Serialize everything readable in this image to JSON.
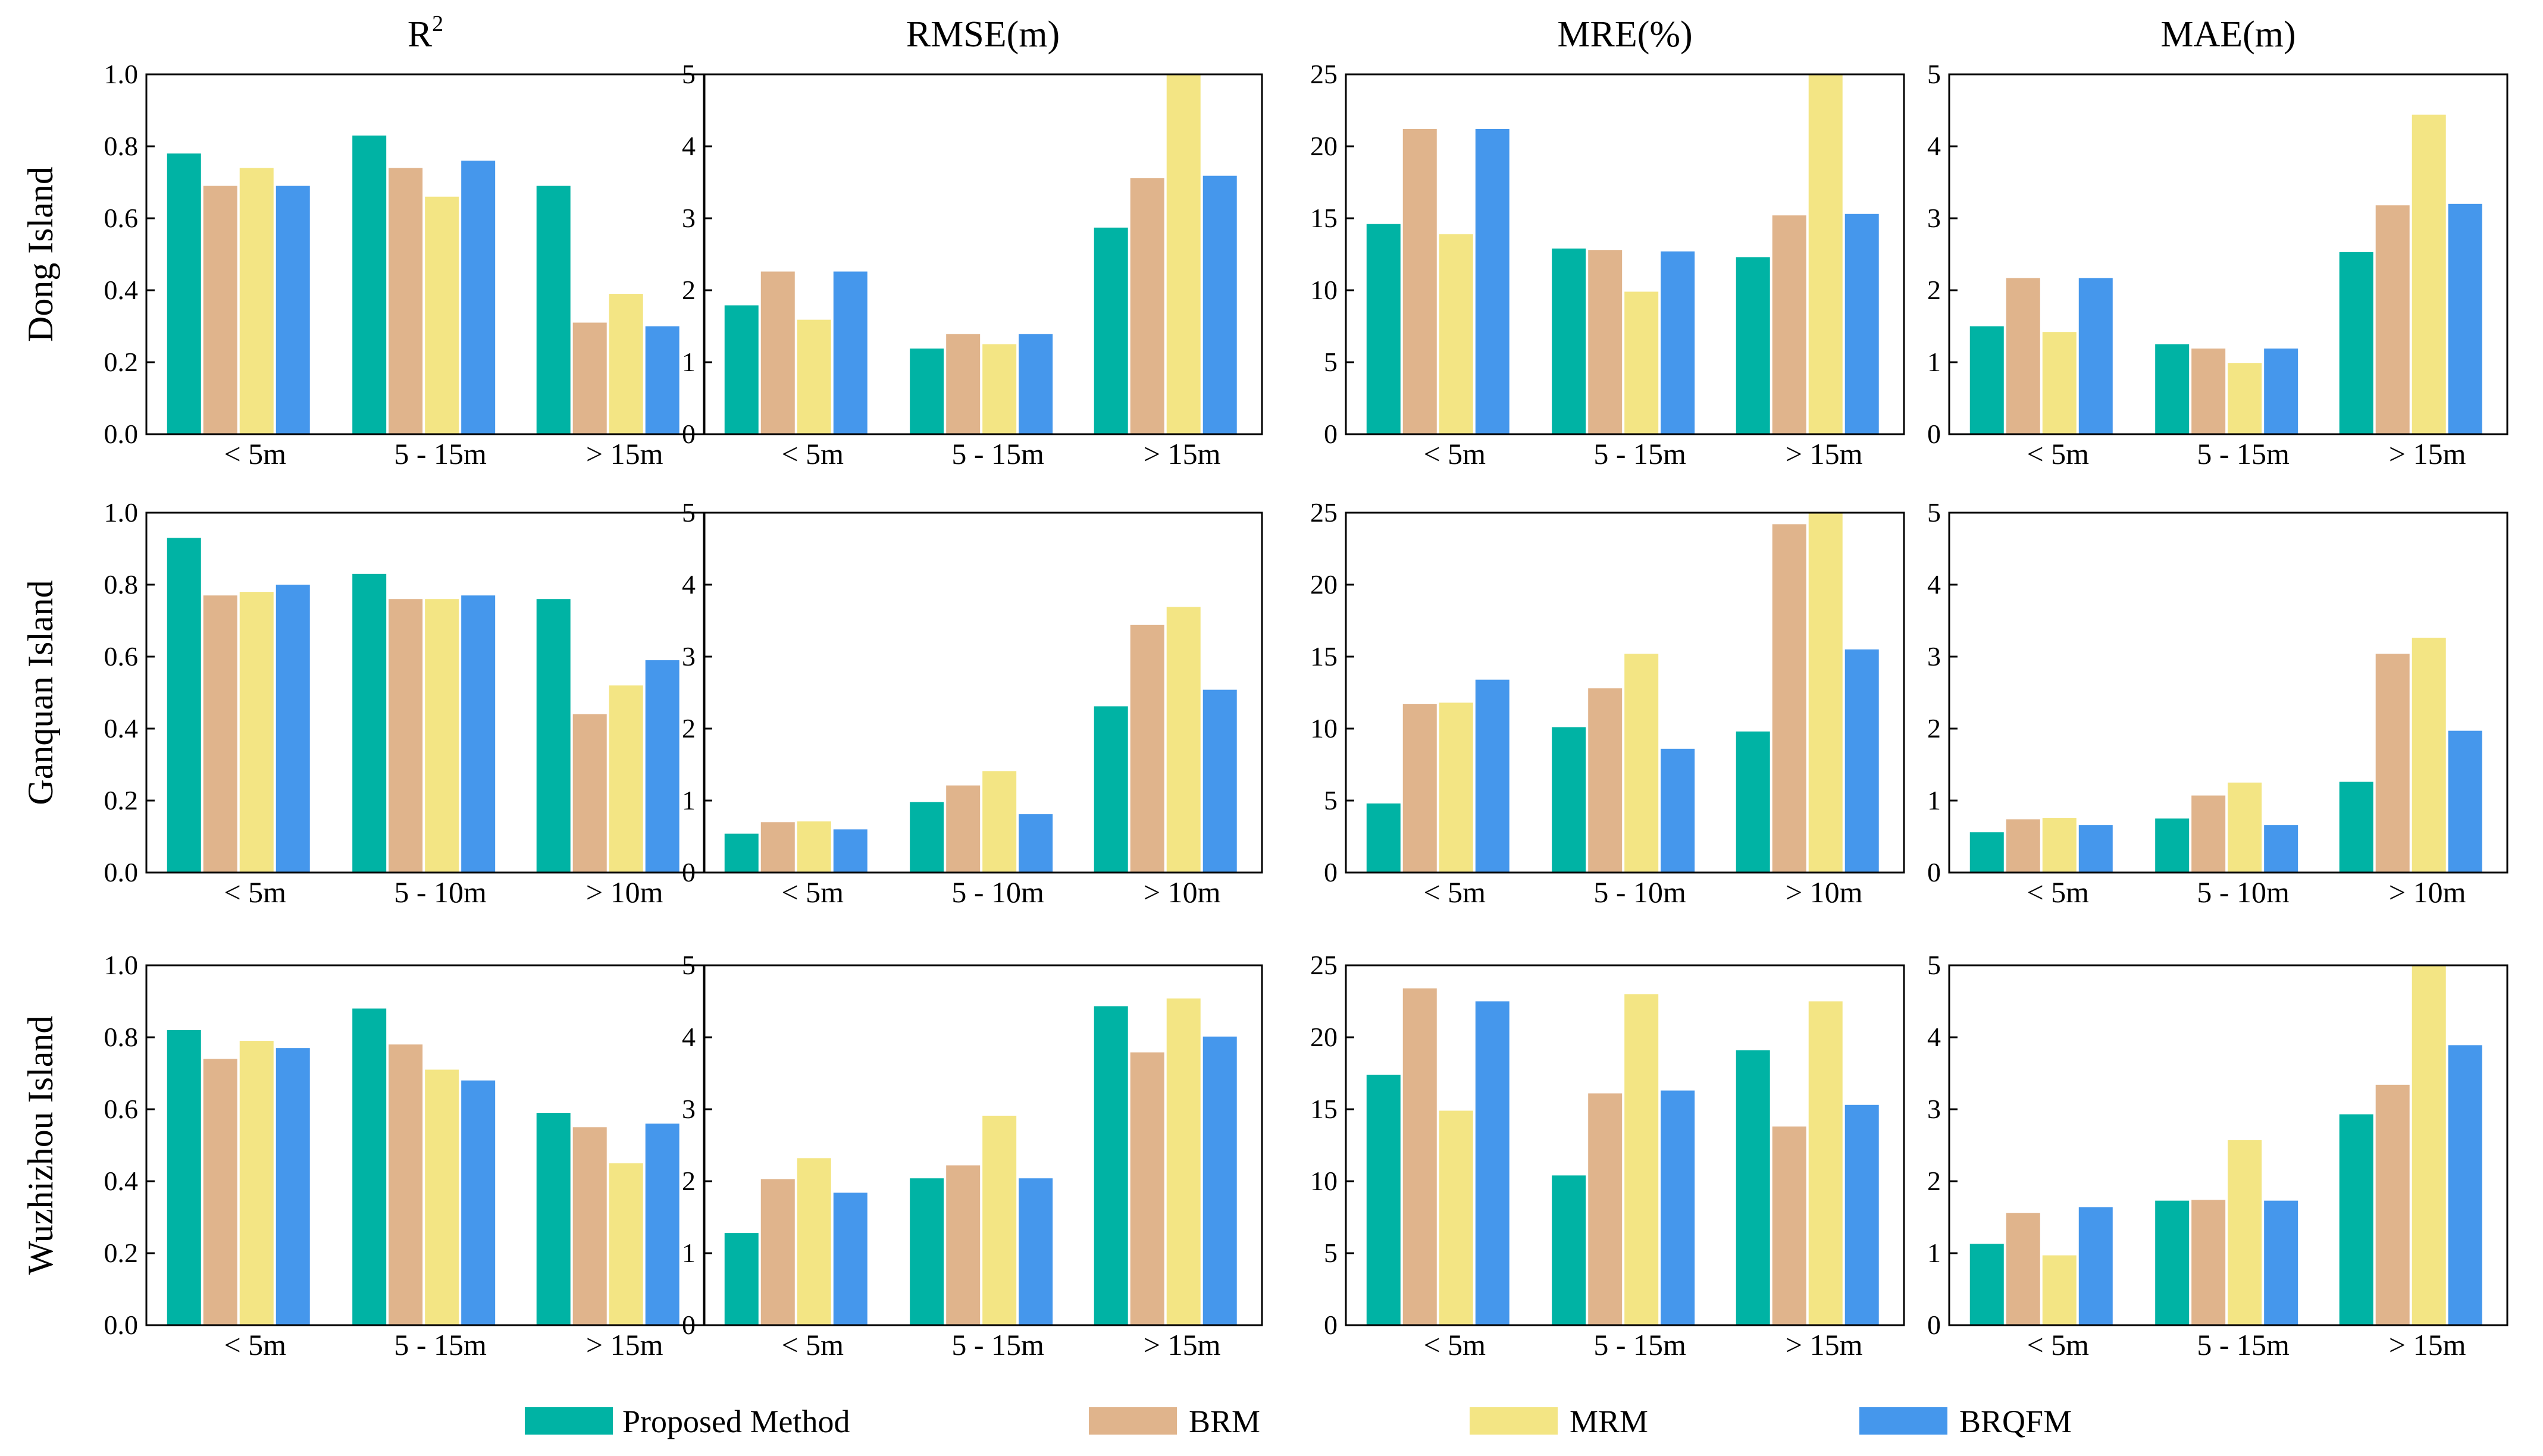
{
  "colors": {
    "Proposed Method": "#00b3a4",
    "BRM": "#e0b48c",
    "MRM": "#f3e584",
    "BRQFM": "#4597ec"
  },
  "metrics": [
    {
      "title": "R",
      "title_sup": "2",
      "ylim": [
        0,
        1.0
      ],
      "ticks": [
        "0.0",
        "0.2",
        "0.4",
        "0.6",
        "0.8",
        "1.0"
      ]
    },
    {
      "title": "RMSE(m)",
      "ylim": [
        0,
        5
      ],
      "ticks": [
        "0",
        "1",
        "2",
        "3",
        "4",
        "5"
      ]
    },
    {
      "title": "MRE(%)",
      "ylim": [
        0,
        25
      ],
      "ticks": [
        "0",
        "5",
        "10",
        "15",
        "20",
        "25"
      ]
    },
    {
      "title": "MAE(m)",
      "ylim": [
        0,
        5
      ],
      "ticks": [
        "0",
        "1",
        "2",
        "3",
        "4",
        "5"
      ]
    }
  ],
  "series_names": [
    "Proposed Method",
    "BRM",
    "MRM",
    "BRQFM"
  ],
  "islands": [
    {
      "name": "Dong Island",
      "categories": [
        "< 5m",
        "5 - 15m",
        "> 15m"
      ]
    },
    {
      "name": "Ganquan Island",
      "categories": [
        "< 5m",
        "5 - 10m",
        "> 10m"
      ]
    },
    {
      "name": "Wuzhizhou Island",
      "categories": [
        "< 5m",
        "5 - 15m",
        "> 15m"
      ]
    }
  ],
  "chart_data": [
    {
      "type": "bar",
      "island": "Dong Island",
      "metric": "R2",
      "ylim": [
        0,
        1.0
      ],
      "categories": [
        "< 5m",
        "5 - 15m",
        "> 15m"
      ],
      "series": [
        {
          "name": "Proposed Method",
          "values": [
            0.78,
            0.83,
            0.69
          ]
        },
        {
          "name": "BRM",
          "values": [
            0.69,
            0.74,
            0.31
          ]
        },
        {
          "name": "MRM",
          "values": [
            0.74,
            0.66,
            0.39
          ]
        },
        {
          "name": "BRQFM",
          "values": [
            0.69,
            0.76,
            0.3
          ]
        }
      ]
    },
    {
      "type": "bar",
      "island": "Dong Island",
      "metric": "RMSE(m)",
      "ylim": [
        0,
        5
      ],
      "categories": [
        "< 5m",
        "5 - 15m",
        "> 15m"
      ],
      "series": [
        {
          "name": "Proposed Method",
          "values": [
            1.79,
            1.19,
            2.87
          ]
        },
        {
          "name": "BRM",
          "values": [
            2.26,
            1.39,
            3.56
          ]
        },
        {
          "name": "MRM",
          "values": [
            1.59,
            1.25,
            5.0
          ]
        },
        {
          "name": "BRQFM",
          "values": [
            2.26,
            1.39,
            3.59
          ]
        }
      ]
    },
    {
      "type": "bar",
      "island": "Dong Island",
      "metric": "MRE(%)",
      "ylim": [
        0,
        25
      ],
      "categories": [
        "< 5m",
        "5 - 15m",
        "> 15m"
      ],
      "series": [
        {
          "name": "Proposed Method",
          "values": [
            14.6,
            12.9,
            12.3
          ]
        },
        {
          "name": "BRM",
          "values": [
            21.2,
            12.8,
            15.2
          ]
        },
        {
          "name": "MRM",
          "values": [
            13.9,
            9.9,
            25.0
          ]
        },
        {
          "name": "BRQFM",
          "values": [
            21.2,
            12.7,
            15.3
          ]
        }
      ]
    },
    {
      "type": "bar",
      "island": "Dong Island",
      "metric": "MAE(m)",
      "ylim": [
        0,
        5
      ],
      "categories": [
        "< 5m",
        "5 - 15m",
        "> 15m"
      ],
      "series": [
        {
          "name": "Proposed Method",
          "values": [
            1.5,
            1.25,
            2.53
          ]
        },
        {
          "name": "BRM",
          "values": [
            2.17,
            1.19,
            3.18
          ]
        },
        {
          "name": "MRM",
          "values": [
            1.42,
            0.99,
            4.44
          ]
        },
        {
          "name": "BRQFM",
          "values": [
            2.17,
            1.19,
            3.2
          ]
        }
      ]
    },
    {
      "type": "bar",
      "island": "Ganquan Island",
      "metric": "R2",
      "ylim": [
        0,
        1.0
      ],
      "categories": [
        "< 5m",
        "5 - 10m",
        "> 10m"
      ],
      "series": [
        {
          "name": "Proposed Method",
          "values": [
            0.93,
            0.83,
            0.76
          ]
        },
        {
          "name": "BRM",
          "values": [
            0.77,
            0.76,
            0.44
          ]
        },
        {
          "name": "MRM",
          "values": [
            0.78,
            0.76,
            0.52
          ]
        },
        {
          "name": "BRQFM",
          "values": [
            0.8,
            0.77,
            0.59
          ]
        }
      ]
    },
    {
      "type": "bar",
      "island": "Ganquan Island",
      "metric": "RMSE(m)",
      "ylim": [
        0,
        5
      ],
      "categories": [
        "< 5m",
        "5 - 10m",
        "> 10m"
      ],
      "series": [
        {
          "name": "Proposed Method",
          "values": [
            0.54,
            0.98,
            2.31
          ]
        },
        {
          "name": "BRM",
          "values": [
            0.7,
            1.21,
            3.44
          ]
        },
        {
          "name": "MRM",
          "values": [
            0.71,
            1.41,
            3.69
          ]
        },
        {
          "name": "BRQFM",
          "values": [
            0.6,
            0.81,
            2.54
          ]
        }
      ]
    },
    {
      "type": "bar",
      "island": "Ganquan Island",
      "metric": "MRE(%)",
      "ylim": [
        0,
        25
      ],
      "categories": [
        "< 5m",
        "5 - 10m",
        "> 10m"
      ],
      "series": [
        {
          "name": "Proposed Method",
          "values": [
            4.8,
            10.1,
            9.8
          ]
        },
        {
          "name": "BRM",
          "values": [
            11.7,
            12.8,
            24.2
          ]
        },
        {
          "name": "MRM",
          "values": [
            11.8,
            15.2,
            25.0
          ]
        },
        {
          "name": "BRQFM",
          "values": [
            13.4,
            8.6,
            15.5
          ]
        }
      ]
    },
    {
      "type": "bar",
      "island": "Ganquan Island",
      "metric": "MAE(m)",
      "ylim": [
        0,
        5
      ],
      "categories": [
        "< 5m",
        "5 - 10m",
        "> 10m"
      ],
      "series": [
        {
          "name": "Proposed Method",
          "values": [
            0.56,
            0.75,
            1.26
          ]
        },
        {
          "name": "BRM",
          "values": [
            0.74,
            1.07,
            3.04
          ]
        },
        {
          "name": "MRM",
          "values": [
            0.76,
            1.25,
            3.26
          ]
        },
        {
          "name": "BRQFM",
          "values": [
            0.66,
            0.66,
            1.97
          ]
        }
      ]
    },
    {
      "type": "bar",
      "island": "Wuzhizhou Island",
      "metric": "R2",
      "ylim": [
        0,
        1.0
      ],
      "categories": [
        "< 5m",
        "5 - 15m",
        "> 15m"
      ],
      "series": [
        {
          "name": "Proposed Method",
          "values": [
            0.82,
            0.88,
            0.59
          ]
        },
        {
          "name": "BRM",
          "values": [
            0.74,
            0.78,
            0.55
          ]
        },
        {
          "name": "MRM",
          "values": [
            0.79,
            0.71,
            0.45
          ]
        },
        {
          "name": "BRQFM",
          "values": [
            0.77,
            0.68,
            0.56
          ]
        }
      ]
    },
    {
      "type": "bar",
      "island": "Wuzhizhou Island",
      "metric": "RMSE(m)",
      "ylim": [
        0,
        5
      ],
      "categories": [
        "< 5m",
        "5 - 15m",
        "> 15m"
      ],
      "series": [
        {
          "name": "Proposed Method",
          "values": [
            1.28,
            2.04,
            4.43
          ]
        },
        {
          "name": "BRM",
          "values": [
            2.03,
            2.22,
            3.79
          ]
        },
        {
          "name": "MRM",
          "values": [
            2.32,
            2.91,
            4.54
          ]
        },
        {
          "name": "BRQFM",
          "values": [
            1.84,
            2.04,
            4.01
          ]
        }
      ]
    },
    {
      "type": "bar",
      "island": "Wuzhizhou Island",
      "metric": "MRE(%)",
      "ylim": [
        0,
        25
      ],
      "categories": [
        "< 5m",
        "5 - 15m",
        "> 15m"
      ],
      "series": [
        {
          "name": "Proposed Method",
          "values": [
            17.4,
            10.4,
            19.1
          ]
        },
        {
          "name": "BRM",
          "values": [
            23.4,
            16.1,
            13.8
          ]
        },
        {
          "name": "MRM",
          "values": [
            14.9,
            23.0,
            22.5
          ]
        },
        {
          "name": "BRQFM",
          "values": [
            22.5,
            16.3,
            15.3
          ]
        }
      ]
    },
    {
      "type": "bar",
      "island": "Wuzhizhou Island",
      "metric": "MAE(m)",
      "ylim": [
        0,
        5
      ],
      "categories": [
        "< 5m",
        "5 - 15m",
        "> 15m"
      ],
      "series": [
        {
          "name": "Proposed Method",
          "values": [
            1.13,
            1.73,
            2.93
          ]
        },
        {
          "name": "BRM",
          "values": [
            1.56,
            1.74,
            3.34
          ]
        },
        {
          "name": "MRM",
          "values": [
            0.97,
            2.57,
            5.0
          ]
        },
        {
          "name": "BRQFM",
          "values": [
            1.64,
            1.73,
            3.89
          ]
        }
      ]
    }
  ]
}
